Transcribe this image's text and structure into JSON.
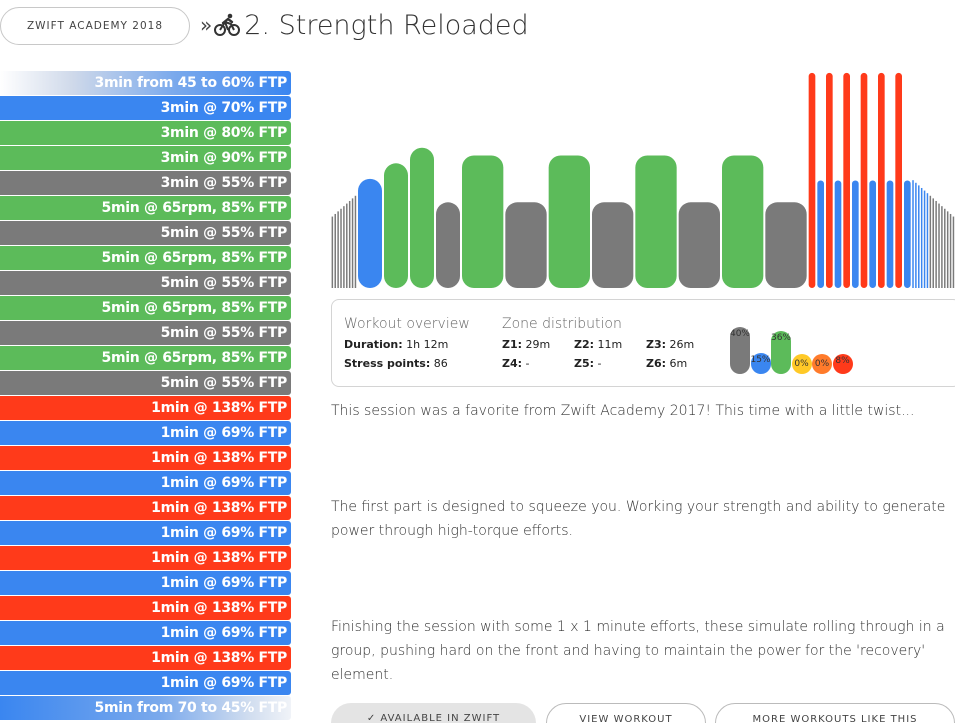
{
  "breadcrumb": {
    "parent_label": "ZWIFT ACADEMY 2018",
    "separator": "»"
  },
  "page": {
    "title": "2. Strength Reloaded"
  },
  "intervals": [
    {
      "label": "3min from 45 to 60% FTP",
      "zone": "rampup"
    },
    {
      "label": "3min @ 70% FTP",
      "zone": "blue"
    },
    {
      "label": "3min @ 80% FTP",
      "zone": "green"
    },
    {
      "label": "3min @ 90% FTP",
      "zone": "green"
    },
    {
      "label": "3min @ 55% FTP",
      "zone": "gray"
    },
    {
      "label": "5min @ 65rpm, 85% FTP",
      "zone": "green"
    },
    {
      "label": "5min @ 55% FTP",
      "zone": "gray"
    },
    {
      "label": "5min @ 65rpm, 85% FTP",
      "zone": "green"
    },
    {
      "label": "5min @ 55% FTP",
      "zone": "gray"
    },
    {
      "label": "5min @ 65rpm, 85% FTP",
      "zone": "green"
    },
    {
      "label": "5min @ 55% FTP",
      "zone": "gray"
    },
    {
      "label": "5min @ 65rpm, 85% FTP",
      "zone": "green"
    },
    {
      "label": "5min @ 55% FTP",
      "zone": "gray"
    },
    {
      "label": "1min @ 138% FTP",
      "zone": "red"
    },
    {
      "label": "1min @ 69% FTP",
      "zone": "blue"
    },
    {
      "label": "1min @ 138% FTP",
      "zone": "red"
    },
    {
      "label": "1min @ 69% FTP",
      "zone": "blue"
    },
    {
      "label": "1min @ 138% FTP",
      "zone": "red"
    },
    {
      "label": "1min @ 69% FTP",
      "zone": "blue"
    },
    {
      "label": "1min @ 138% FTP",
      "zone": "red"
    },
    {
      "label": "1min @ 69% FTP",
      "zone": "blue"
    },
    {
      "label": "1min @ 138% FTP",
      "zone": "red"
    },
    {
      "label": "1min @ 69% FTP",
      "zone": "blue"
    },
    {
      "label": "1min @ 138% FTP",
      "zone": "red"
    },
    {
      "label": "1min @ 69% FTP",
      "zone": "blue"
    },
    {
      "label": "5min from 70 to 45% FTP",
      "zone": "rampdown"
    }
  ],
  "overview": {
    "title": "Workout overview",
    "duration_label": "Duration:",
    "duration_value": "1h 12m",
    "stress_label": "Stress points:",
    "stress_value": "86"
  },
  "zones": {
    "title": "Zone distribution",
    "z1_label": "Z1:",
    "z1_value": "29m",
    "z2_label": "Z2:",
    "z2_value": "11m",
    "z3_label": "Z3:",
    "z3_value": "26m",
    "z4_label": "Z4:",
    "z4_value": "-",
    "z5_label": "Z5:",
    "z5_value": "-",
    "z6_label": "Z6:",
    "z6_value": "6m",
    "distribution": [
      {
        "pct": "40%",
        "value": 40,
        "color": "#7a7a7a"
      },
      {
        "pct": "15%",
        "value": 15,
        "color": "#3a86f0"
      },
      {
        "pct": "36%",
        "value": 36,
        "color": "#5cbb5a"
      },
      {
        "pct": "0%",
        "value": 0,
        "color": "#ffc927"
      },
      {
        "pct": "0%",
        "value": 0,
        "color": "#ff7b2b"
      },
      {
        "pct": "8%",
        "value": 8,
        "color": "#ff3a1a"
      }
    ]
  },
  "description": {
    "p1": "This session was a favorite from Zwift Academy 2017! This time with a little twist...",
    "p2": "The first part is designed to squeeze you. Working your strength and ability to generate power through high-torque efforts.",
    "p3": "Finishing the session with some 1 x 1 minute efforts, these simulate rolling through in a group, pushing hard on the front and having to maintain the power for the 'recovery' element."
  },
  "actions": {
    "zwift_label": "✓ AVAILABLE IN ZWIFT",
    "view_label": "VIEW WORKOUT",
    "more_label": "MORE WORKOUTS LIKE THIS"
  },
  "colors": {
    "z1_gray": "#7a7a7a",
    "z2_blue": "#3a86f0",
    "z3_green": "#5cbb5a",
    "z4_yellow": "#ffc927",
    "z5_orange": "#ff7b2b",
    "z6_red": "#ff3a1a"
  }
}
